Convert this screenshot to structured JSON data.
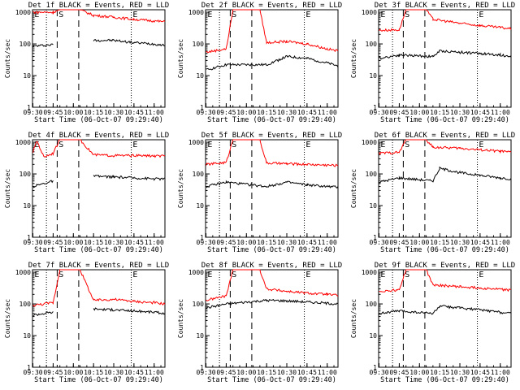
{
  "figure": {
    "colors": {
      "background": "#ffffff",
      "events": "#000000",
      "lld": "#ff0000"
    },
    "common": {
      "xlabel": "Start Time (06-Oct-07 09:29:40)",
      "ylabel": "Counts/sec",
      "x_tick_labels": [
        "09:30",
        "09:45",
        "10:00",
        "10:15",
        "10:30",
        "10:45",
        "11:00"
      ],
      "y_tick_labels": [
        "1",
        "10",
        "100",
        "1000"
      ],
      "markers": [
        "E",
        "S",
        "E"
      ]
    }
  },
  "chart_data": [
    {
      "type": "line",
      "title": "Det 1f BLACK = Events, RED = LLD",
      "xlabel": "Start Time (06-Oct-07 09:29:40)",
      "ylabel": "Counts/sec",
      "yscale": "log",
      "ylim": [
        1,
        1200
      ],
      "xlim": [
        "09:29:40",
        "11:08:00"
      ],
      "grid": "vertical dotted at markers",
      "series": [
        {
          "color": "#000000",
          "x": [
            "09:30",
            "09:45",
            "10:05",
            "10:15",
            "10:30",
            "10:45",
            "11:00",
            "11:08"
          ],
          "y": [
            85,
            95,
            null,
            130,
            130,
            110,
            100,
            90
          ]
        },
        {
          "color": "#ff0000",
          "x": [
            "09:30",
            "09:45",
            "09:50",
            "10:05",
            "10:15",
            "10:30",
            "10:45",
            "11:00",
            "11:08"
          ],
          "y": [
            1000,
            1000,
            1200,
            1200,
            800,
            700,
            600,
            530,
            500
          ]
        }
      ]
    },
    {
      "type": "line",
      "title": "Det 2f BLACK = Events, RED = LLD",
      "xlabel": "Start Time (06-Oct-07 09:29:40)",
      "ylabel": "Counts/sec",
      "yscale": "log",
      "ylim": [
        1,
        1200
      ],
      "xlim": [
        "09:29:40",
        "11:08:00"
      ],
      "grid": "vertical dotted at markers",
      "series": [
        {
          "color": "#000000",
          "x": [
            "09:30",
            "09:45",
            "10:15",
            "10:30",
            "10:45",
            "11:00",
            "11:08"
          ],
          "y": [
            15,
            22,
            22,
            40,
            35,
            25,
            20
          ]
        },
        {
          "color": "#ff0000",
          "x": [
            "09:30",
            "09:45",
            "09:50",
            "10:10",
            "10:15",
            "10:30",
            "10:45",
            "11:00",
            "11:08"
          ],
          "y": [
            55,
            70,
            1200,
            1200,
            110,
            120,
            100,
            70,
            60
          ]
        }
      ]
    },
    {
      "type": "line",
      "title": "Det 3f BLACK = Events, RED = LLD",
      "xlabel": "Start Time (06-Oct-07 09:29:40)",
      "ylabel": "Counts/sec",
      "yscale": "log",
      "ylim": [
        1,
        1200
      ],
      "xlim": [
        "09:29:40",
        "11:08:00"
      ],
      "grid": "vertical dotted at markers",
      "series": [
        {
          "color": "#000000",
          "x": [
            "09:30",
            "09:45",
            "10:10",
            "10:15",
            "10:30",
            "10:45",
            "11:00",
            "11:08"
          ],
          "y": [
            35,
            45,
            40,
            60,
            55,
            50,
            45,
            40
          ]
        },
        {
          "color": "#ff0000",
          "x": [
            "09:30",
            "09:45",
            "09:50",
            "10:05",
            "10:10",
            "10:30",
            "10:45",
            "11:00",
            "11:08"
          ],
          "y": [
            270,
            280,
            1200,
            1200,
            600,
            450,
            380,
            330,
            300
          ]
        }
      ]
    },
    {
      "type": "line",
      "title": "Det 4f BLACK = Events, RED = LLD",
      "xlabel": "Start Time (06-Oct-07 09:29:40)",
      "ylabel": "Counts/sec",
      "yscale": "log",
      "ylim": [
        1,
        1200
      ],
      "xlim": [
        "09:29:40",
        "11:08:00"
      ],
      "grid": "vertical dotted at markers",
      "series": [
        {
          "color": "#000000",
          "x": [
            "09:30",
            "09:45",
            "10:05",
            "10:15",
            "10:30",
            "10:45",
            "11:00",
            "11:08"
          ],
          "y": [
            40,
            60,
            null,
            85,
            80,
            75,
            70,
            70
          ]
        },
        {
          "color": "#ff0000",
          "x": [
            "09:30",
            "09:33",
            "09:38",
            "09:45",
            "09:50",
            "10:05",
            "10:15",
            "10:30",
            "10:45",
            "11:00",
            "11:08"
          ],
          "y": [
            500,
            1100,
            350,
            450,
            1200,
            1200,
            400,
            380,
            380,
            370,
            360
          ]
        }
      ]
    },
    {
      "type": "line",
      "title": "Det 5f BLACK = Events, RED = LLD",
      "xlabel": "Start Time (06-Oct-07 09:29:40)",
      "ylabel": "Counts/sec",
      "yscale": "log",
      "ylim": [
        1,
        1200
      ],
      "xlim": [
        "09:29:40",
        "11:08:00"
      ],
      "grid": "vertical dotted at markers",
      "series": [
        {
          "color": "#000000",
          "x": [
            "09:30",
            "09:45",
            "10:15",
            "10:30",
            "10:45",
            "11:00",
            "11:08"
          ],
          "y": [
            40,
            55,
            40,
            55,
            45,
            40,
            38
          ]
        },
        {
          "color": "#ff0000",
          "x": [
            "09:30",
            "09:45",
            "09:50",
            "10:10",
            "10:15",
            "10:30",
            "10:45",
            "11:00",
            "11:08"
          ],
          "y": [
            200,
            230,
            1200,
            1200,
            220,
            210,
            200,
            190,
            185
          ]
        }
      ]
    },
    {
      "type": "line",
      "title": "Det 6f BLACK = Events, RED = LLD",
      "xlabel": "Start Time (06-Oct-07 09:29:40)",
      "ylabel": "Counts/sec",
      "yscale": "log",
      "ylim": [
        1,
        1200
      ],
      "xlim": [
        "09:29:40",
        "11:08:00"
      ],
      "grid": "vertical dotted at markers",
      "series": [
        {
          "color": "#000000",
          "x": [
            "09:30",
            "09:45",
            "10:10",
            "10:15",
            "10:30",
            "10:45",
            "11:00",
            "11:08"
          ],
          "y": [
            55,
            75,
            60,
            150,
            110,
            90,
            75,
            70
          ]
        },
        {
          "color": "#ff0000",
          "x": [
            "09:30",
            "09:45",
            "09:50",
            "10:05",
            "10:10",
            "10:30",
            "10:45",
            "11:00",
            "11:08"
          ],
          "y": [
            450,
            480,
            1200,
            1200,
            700,
            650,
            580,
            520,
            480
          ]
        }
      ]
    },
    {
      "type": "line",
      "title": "Det 7f BLACK = Events, RED = LLD",
      "xlabel": "Start Time (06-Oct-07 09:29:40)",
      "ylabel": "Counts/sec",
      "yscale": "log",
      "ylim": [
        1,
        1200
      ],
      "xlim": [
        "09:29:40",
        "11:08:00"
      ],
      "grid": "vertical dotted at markers",
      "series": [
        {
          "color": "#000000",
          "x": [
            "09:30",
            "09:45",
            "10:05",
            "10:15",
            "10:30",
            "10:45",
            "11:00",
            "11:08"
          ],
          "y": [
            45,
            55,
            null,
            70,
            65,
            60,
            55,
            50
          ]
        },
        {
          "color": "#ff0000",
          "x": [
            "09:30",
            "09:45",
            "09:50",
            "10:05",
            "10:15",
            "10:30",
            "10:45",
            "11:00",
            "11:08"
          ],
          "y": [
            90,
            110,
            1200,
            1200,
            130,
            140,
            120,
            110,
            100
          ]
        }
      ]
    },
    {
      "type": "line",
      "title": "Det 8f BLACK = Events, RED = LLD",
      "xlabel": "Start Time (06-Oct-07 09:29:40)",
      "ylabel": "Counts/sec",
      "yscale": "log",
      "ylim": [
        1,
        1200
      ],
      "xlim": [
        "09:29:40",
        "11:08:00"
      ],
      "grid": "vertical dotted at markers",
      "series": [
        {
          "color": "#000000",
          "x": [
            "09:30",
            "09:45",
            "10:15",
            "10:30",
            "10:45",
            "11:00",
            "11:08"
          ],
          "y": [
            75,
            100,
            130,
            125,
            115,
            105,
            100
          ]
        },
        {
          "color": "#ff0000",
          "x": [
            "09:30",
            "09:45",
            "09:50",
            "10:10",
            "10:15",
            "10:30",
            "10:45",
            "11:00",
            "11:08"
          ],
          "y": [
            130,
            180,
            1200,
            1200,
            300,
            250,
            220,
            200,
            185
          ]
        }
      ]
    },
    {
      "type": "line",
      "title": "Det 9f BLACK = Events, RED = LLD",
      "xlabel": "Start Time (06-Oct-07 09:29:40)",
      "ylabel": "Counts/sec",
      "yscale": "log",
      "ylim": [
        1,
        1200
      ],
      "xlim": [
        "09:29:40",
        "11:08:00"
      ],
      "grid": "vertical dotted at markers",
      "series": [
        {
          "color": "#000000",
          "x": [
            "09:30",
            "09:45",
            "10:10",
            "10:15",
            "10:30",
            "10:45",
            "11:00",
            "11:08"
          ],
          "y": [
            50,
            60,
            50,
            85,
            75,
            65,
            55,
            50
          ]
        },
        {
          "color": "#ff0000",
          "x": [
            "09:30",
            "09:45",
            "09:50",
            "10:05",
            "10:10",
            "10:30",
            "10:45",
            "11:00",
            "11:08"
          ],
          "y": [
            250,
            280,
            1200,
            1200,
            400,
            350,
            320,
            290,
            270
          ]
        }
      ]
    }
  ]
}
